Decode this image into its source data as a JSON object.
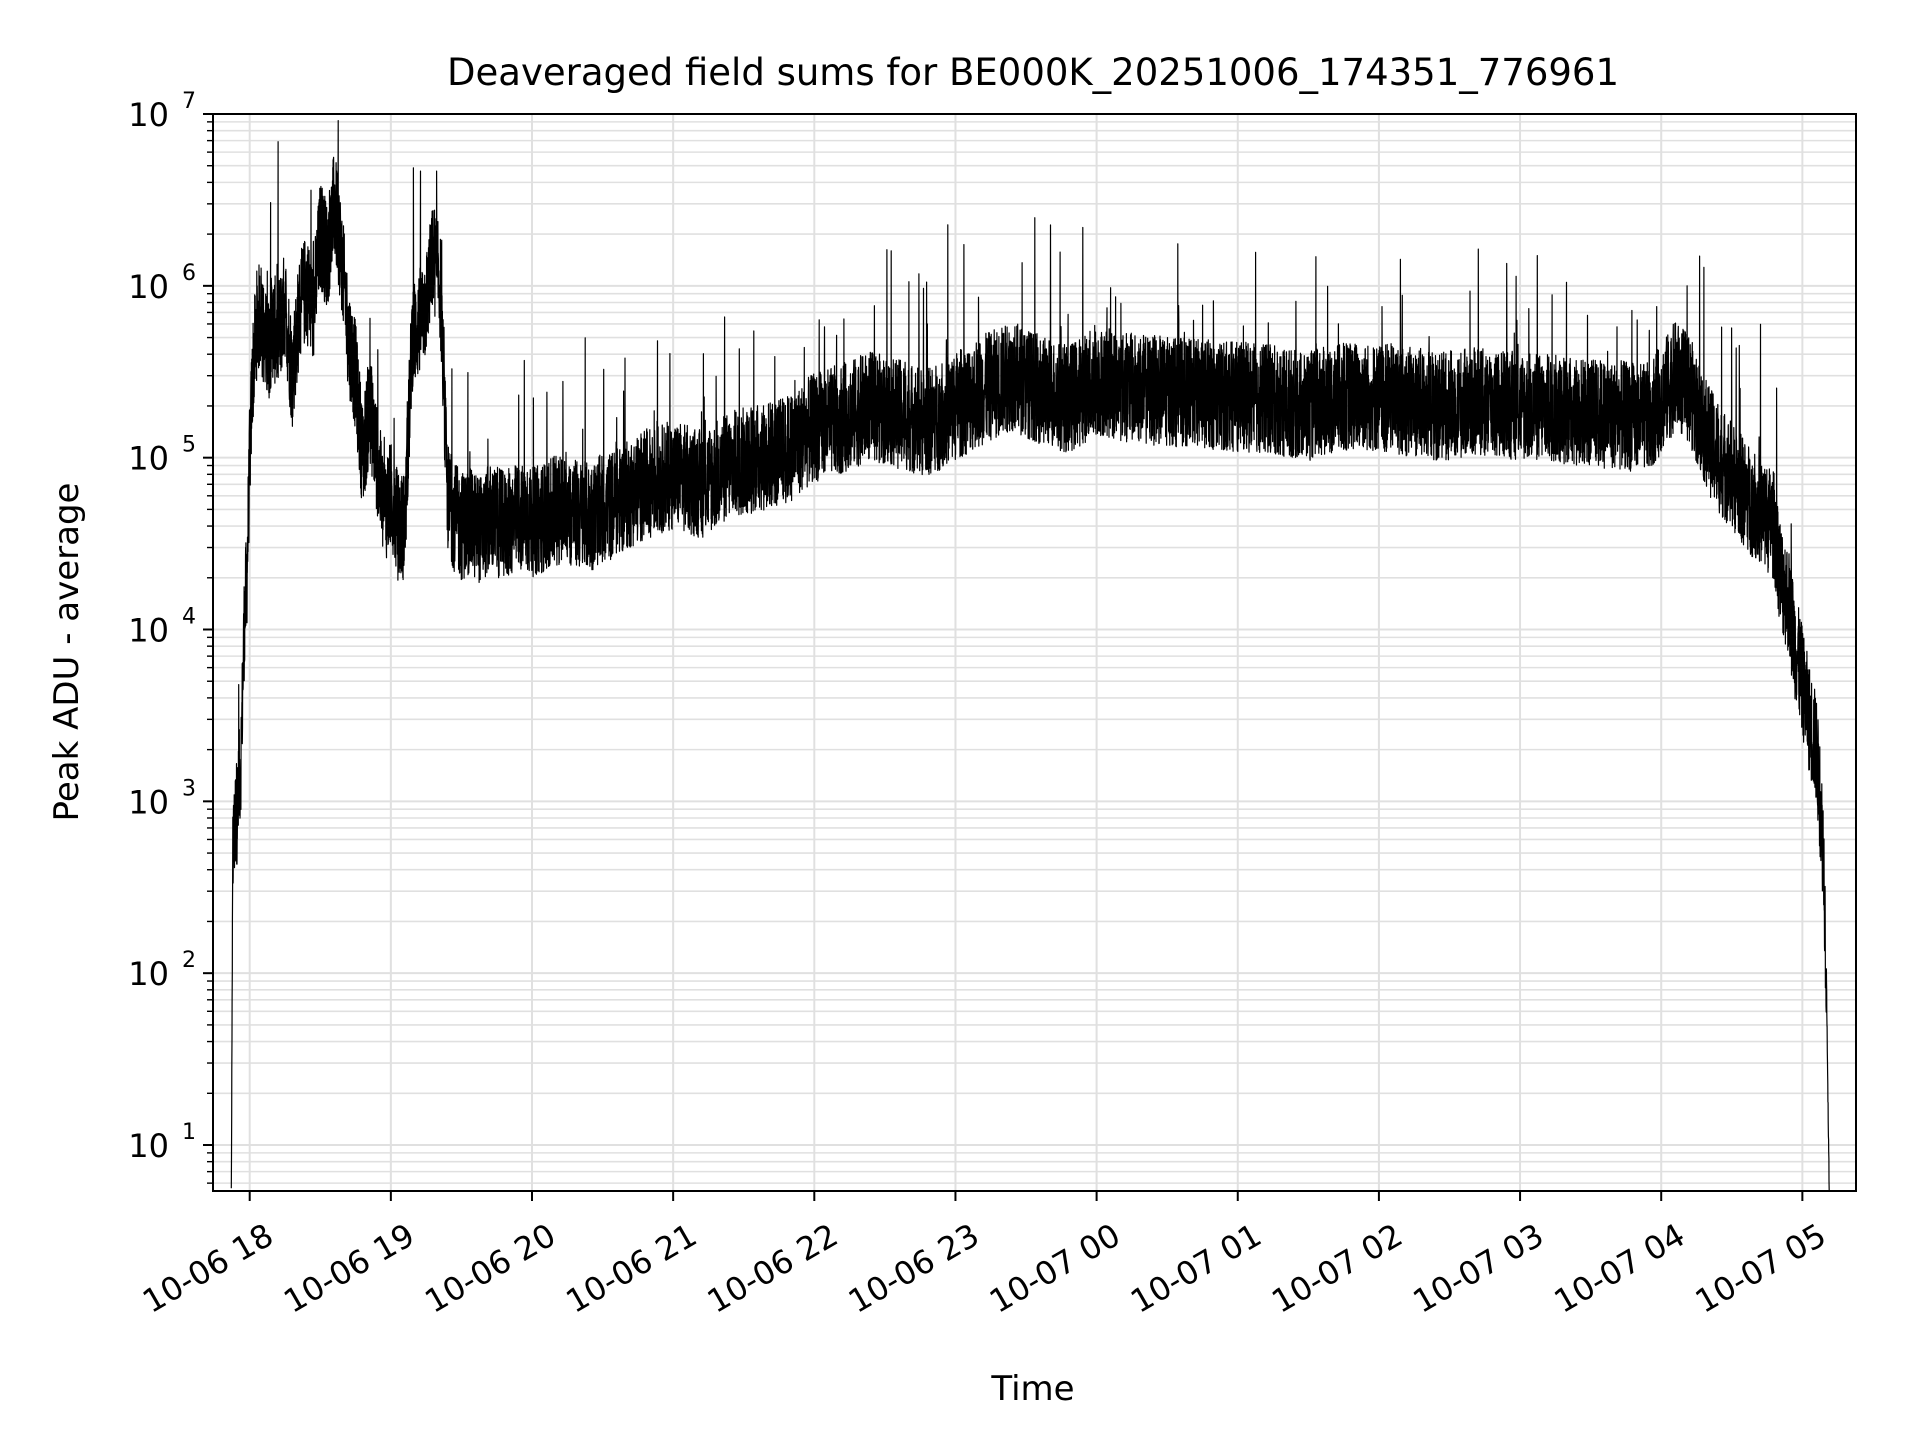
{
  "chart_data": {
    "type": "line",
    "title": "Deaveraged field sums for BE000K_20251006_174351_776961",
    "xlabel": "Time",
    "ylabel": "Peak ADU - average",
    "yscale": "log",
    "ylim": [
      5.4,
      10000000
    ],
    "x_unit": "hours since 2025-10-06 17:00",
    "xlim": [
      0.74,
      12.38
    ],
    "grid": true,
    "grid_minor": true,
    "line_color": "#000000",
    "grid_color": "#e0e0e0",
    "x_ticks": [
      {
        "v": 1,
        "label": "10-06 18"
      },
      {
        "v": 2,
        "label": "10-06 19"
      },
      {
        "v": 3,
        "label": "10-06 20"
      },
      {
        "v": 4,
        "label": "10-06 21"
      },
      {
        "v": 5,
        "label": "10-06 22"
      },
      {
        "v": 6,
        "label": "10-06 23"
      },
      {
        "v": 7,
        "label": "10-07 00"
      },
      {
        "v": 8,
        "label": "10-07 01"
      },
      {
        "v": 9,
        "label": "10-07 02"
      },
      {
        "v": 10,
        "label": "10-07 03"
      },
      {
        "v": 11,
        "label": "10-07 04"
      },
      {
        "v": 12,
        "label": "10-07 05"
      }
    ],
    "y_ticks": [
      {
        "v": 10,
        "base": "10",
        "exp": "1"
      },
      {
        "v": 100,
        "base": "10",
        "exp": "2"
      },
      {
        "v": 1000,
        "base": "10",
        "exp": "3"
      },
      {
        "v": 10000,
        "base": "10",
        "exp": "4"
      },
      {
        "v": 100000,
        "base": "10",
        "exp": "5"
      },
      {
        "v": 1000000,
        "base": "10",
        "exp": "6"
      },
      {
        "v": 10000000,
        "base": "10",
        "exp": "7"
      }
    ],
    "series": [
      {
        "name": "field sums",
        "x": [
          0.87,
          0.88,
          0.9,
          0.92,
          0.94,
          0.96,
          0.98,
          1.0,
          1.02,
          1.05,
          1.08,
          1.1,
          1.13,
          1.16,
          1.2,
          1.25,
          1.3,
          1.35,
          1.4,
          1.45,
          1.5,
          1.55,
          1.6,
          1.65,
          1.7,
          1.75,
          1.8,
          1.85,
          1.9,
          1.95,
          2.0,
          2.05,
          2.1,
          2.15,
          2.2,
          2.25,
          2.3,
          2.35,
          2.4,
          2.45,
          2.5,
          2.55,
          2.6,
          2.65,
          2.7,
          2.8,
          2.9,
          3.0,
          3.2,
          3.4,
          3.6,
          3.8,
          4.0,
          4.2,
          4.4,
          4.6,
          4.8,
          5.0,
          5.2,
          5.4,
          5.6,
          5.8,
          6.0,
          6.2,
          6.4,
          6.6,
          6.8,
          7.0,
          7.3,
          7.6,
          7.9,
          8.2,
          8.5,
          8.8,
          9.1,
          9.4,
          9.7,
          10.0,
          10.3,
          10.6,
          10.9,
          11.0,
          11.1,
          11.2,
          11.3,
          11.4,
          11.5,
          11.6,
          11.7,
          11.8,
          11.85,
          11.9,
          11.95,
          12.0,
          12.05,
          12.1,
          12.15,
          12.17,
          12.19
        ],
        "y": [
          5.4,
          500,
          800,
          1000,
          2000,
          10000,
          20000,
          100000,
          300000,
          600000,
          700000,
          500000,
          400000,
          600000,
          500000,
          800000,
          300000,
          700000,
          1000000,
          700000,
          2000000,
          1500000,
          3000000,
          1500000,
          500000,
          300000,
          100000,
          200000,
          100000,
          50000,
          60000,
          40000,
          40000,
          500000,
          600000,
          800000,
          1500000,
          1000000,
          60000,
          45000,
          40000,
          42000,
          40000,
          38000,
          45000,
          40000,
          45000,
          42000,
          50000,
          45000,
          55000,
          70000,
          80000,
          70000,
          90000,
          100000,
          110000,
          150000,
          170000,
          200000,
          180000,
          160000,
          200000,
          250000,
          300000,
          250000,
          220000,
          280000,
          250000,
          240000,
          230000,
          220000,
          200000,
          230000,
          220000,
          200000,
          210000,
          200000,
          190000,
          180000,
          170000,
          220000,
          300000,
          250000,
          150000,
          100000,
          80000,
          60000,
          50000,
          40000,
          20000,
          15000,
          8000,
          5000,
          3000,
          2000,
          500,
          100,
          5.4
        ]
      }
    ]
  }
}
